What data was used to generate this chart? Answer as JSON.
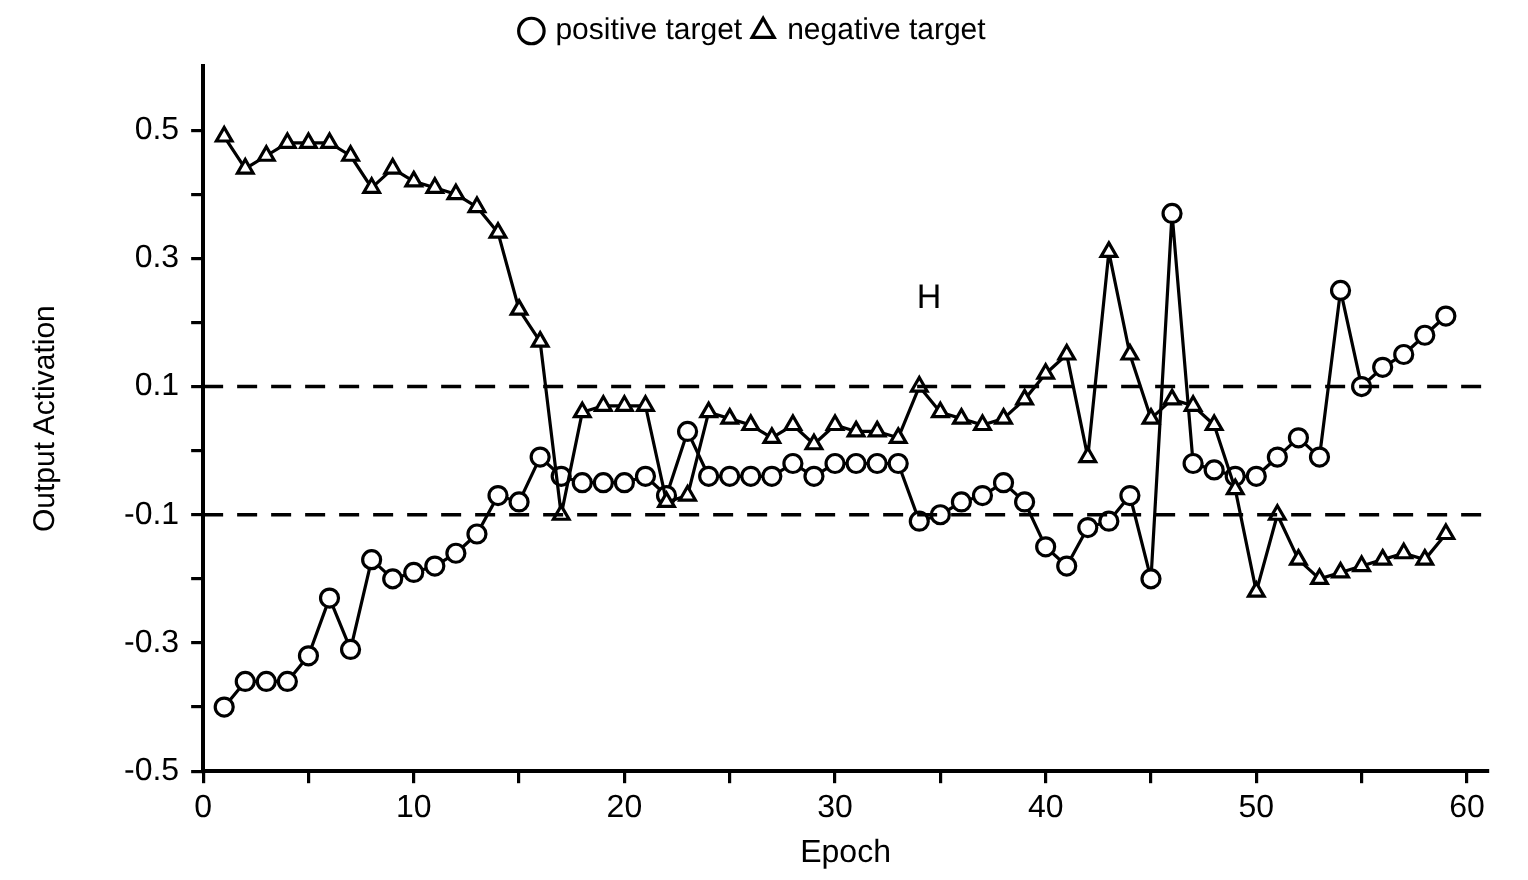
{
  "chart_data": {
    "type": "line",
    "xlabel": "Epoch",
    "ylabel": "Output Activation",
    "x": [
      1,
      2,
      3,
      4,
      5,
      6,
      7,
      8,
      9,
      10,
      11,
      12,
      13,
      14,
      15,
      16,
      17,
      18,
      19,
      20,
      21,
      22,
      23,
      24,
      25,
      26,
      27,
      28,
      29,
      30,
      31,
      32,
      33,
      34,
      35,
      36,
      37,
      38,
      39,
      40,
      41,
      42,
      43,
      44,
      45,
      46,
      47,
      48,
      49,
      50,
      51,
      52,
      53,
      54,
      55,
      56,
      57,
      58,
      59
    ],
    "series": [
      {
        "name": "positive target",
        "color": "#000000",
        "marker": "circle",
        "values": [
          -0.4,
          -0.36,
          -0.36,
          -0.36,
          -0.32,
          -0.23,
          -0.31,
          -0.17,
          -0.2,
          -0.19,
          -0.18,
          -0.16,
          -0.13,
          -0.07,
          -0.08,
          -0.01,
          -0.04,
          -0.05,
          -0.05,
          -0.05,
          -0.04,
          -0.07,
          0.03,
          -0.04,
          -0.04,
          -0.04,
          -0.04,
          -0.02,
          -0.04,
          -0.02,
          -0.02,
          -0.02,
          -0.02,
          -0.11,
          -0.1,
          -0.08,
          -0.07,
          -0.05,
          -0.08,
          -0.15,
          -0.18,
          -0.12,
          -0.11,
          -0.07,
          -0.2,
          0.37,
          -0.02,
          -0.03,
          -0.04,
          -0.04,
          -0.01,
          0.02,
          -0.01,
          0.25,
          0.1,
          0.13,
          0.15,
          0.18,
          0.21
        ]
      },
      {
        "name": "negative target",
        "color": "#000000",
        "marker": "triangle",
        "values": [
          0.49,
          0.44,
          0.46,
          0.48,
          0.48,
          0.48,
          0.46,
          0.41,
          0.44,
          0.42,
          0.41,
          0.4,
          0.38,
          0.34,
          0.22,
          0.17,
          -0.1,
          0.06,
          0.07,
          0.07,
          0.07,
          -0.08,
          -0.07,
          0.06,
          0.05,
          0.04,
          0.02,
          0.04,
          0.01,
          0.04,
          0.03,
          0.03,
          0.02,
          0.1,
          0.06,
          0.05,
          0.04,
          0.05,
          0.08,
          0.12,
          0.15,
          -0.01,
          0.31,
          0.15,
          0.05,
          0.08,
          0.07,
          0.04,
          -0.06,
          -0.22,
          -0.1,
          -0.17,
          -0.2,
          -0.19,
          -0.18,
          -0.17,
          -0.16,
          -0.17,
          -0.13
        ]
      }
    ],
    "xlim": [
      0,
      61
    ],
    "xticks": [
      0,
      {
        "value": 5,
        "label": null
      },
      10,
      {
        "value": 15,
        "label": null
      },
      20,
      {
        "value": 25,
        "label": null
      },
      30,
      {
        "value": 35,
        "label": null
      },
      40,
      {
        "value": 45,
        "label": null
      },
      50,
      {
        "value": 55,
        "label": null
      },
      60
    ],
    "ylim": [
      -0.5,
      0.6
    ],
    "yticks": [
      -0.5,
      {
        "value": -0.4,
        "label": null
      },
      -0.3,
      {
        "value": -0.2,
        "label": null
      },
      -0.1,
      {
        "value": 0,
        "label": null
      },
      0.1,
      {
        "value": 0.2,
        "label": null
      },
      0.3,
      {
        "value": 0.4,
        "label": null
      },
      0.5
    ],
    "ref_lines": [
      {
        "axis": "y",
        "value": 0.1,
        "color": "#000000",
        "line_style": "dashed"
      },
      {
        "axis": "y",
        "value": -0.1,
        "color": "#000000",
        "line_style": "dashed"
      }
    ],
    "annotations": [
      "H"
    ],
    "legend": "top",
    "grid": false,
    "line_style": "solid"
  }
}
